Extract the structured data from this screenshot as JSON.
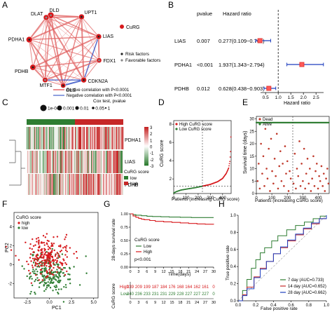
{
  "colors": {
    "red": "#d7191c",
    "darkred": "#c0392b",
    "green": "#2e7d32",
    "blue": "#1f3fbf",
    "gray": "#666666",
    "heat_high": "#c62828",
    "heat_low": "#2e7d32",
    "heat_mid": "#ffffff"
  },
  "panel_labels": [
    "A",
    "B",
    "C",
    "D",
    "E",
    "F",
    "G",
    "H"
  ],
  "network": {
    "genes": [
      "DLD",
      "UPT1",
      "LIAS",
      "FDX1",
      "CDKN2A",
      "GLS",
      "MTF1",
      "PDHB",
      "PDHA1",
      "DLAT"
    ],
    "legend_node": "CuRG",
    "legend_risk": "Risk factors",
    "legend_favorable": "Favorable factors",
    "legend_pos": "Postive correlation with P<0.0001",
    "legend_neg": "Negative correlation with P<0.0001",
    "cox_title": "Cox test, pvalue",
    "cox_labels": [
      "1e-04",
      "0.001",
      "0.01",
      "0.05",
      "1"
    ]
  },
  "forest": {
    "col_pvalue": "pvalue",
    "col_hr": "Hazard ratio",
    "xlabel": "Hazard ratio",
    "ticks": [
      "0.5",
      "1.0",
      "1.5",
      "2.0",
      "2.5"
    ],
    "xlim": [
      0.3,
      2.8
    ],
    "rows": [
      {
        "gene": "LIAS",
        "pvalue": "0.007",
        "hr_text": "0.277(0.109−0.701)",
        "hr": 0.277,
        "lo": 0.109,
        "hi": 0.701
      },
      {
        "gene": "PDHA1",
        "pvalue": "<0.001",
        "hr_text": "1.937(1.343−2.794)",
        "hr": 1.937,
        "lo": 1.343,
        "hi": 2.794
      },
      {
        "gene": "PDHB",
        "pvalue": "0.012",
        "hr_text": "0.628(0.438−0.903)",
        "hr": 0.628,
        "lo": 0.438,
        "hi": 0.903
      }
    ]
  },
  "heatmap": {
    "rows": [
      "PDHA1",
      "LIAS",
      "PDHB"
    ],
    "scale_ticks": [
      "3",
      "2",
      "1",
      "0",
      "-1",
      "-2",
      "-3"
    ],
    "legend_title": "CuRG score",
    "legend_low": "low",
    "legend_high": "high"
  },
  "chart_data": [
    {
      "type": "scatter",
      "panel": "D",
      "ylabel": "CuRG score",
      "xlabel": "Patients (increasing CuRG score)",
      "legend": [
        "High CuRG score",
        "Low CuRG score"
      ],
      "x_ticks": [
        "0",
        "100",
        "200",
        "300",
        "400"
      ],
      "y_ticks": [
        "2",
        "4",
        "6",
        "8"
      ],
      "xlim": [
        0,
        470
      ],
      "ylim": [
        0.4,
        8.4
      ],
      "cutoff_x": 235,
      "cutoff_y": 1.2,
      "n": 470,
      "curve_points": [
        [
          0,
          0.45
        ],
        [
          20,
          0.6
        ],
        [
          60,
          0.78
        ],
        [
          120,
          0.92
        ],
        [
          180,
          1.05
        ],
        [
          235,
          1.2
        ],
        [
          300,
          1.4
        ],
        [
          360,
          1.7
        ],
        [
          400,
          2.05
        ],
        [
          430,
          2.6
        ],
        [
          450,
          3.2
        ],
        [
          460,
          4.0
        ],
        [
          466,
          5.2
        ],
        [
          470,
          8.0
        ]
      ]
    },
    {
      "type": "scatter",
      "panel": "E",
      "ylabel": "Survival time (days)",
      "xlabel": "Patients (increasing CuRG score)",
      "legend": [
        "Dead",
        "Alive"
      ],
      "x_ticks": [
        "0",
        "100",
        "200",
        "300",
        "400"
      ],
      "y_ticks": [
        "0",
        "5",
        "10",
        "15",
        "20",
        "25",
        "30"
      ],
      "xlim": [
        0,
        470
      ],
      "ylim": [
        0,
        31
      ],
      "cutoff_x": 235,
      "dead_points": [
        [
          8,
          5
        ],
        [
          15,
          12
        ],
        [
          22,
          2
        ],
        [
          30,
          20
        ],
        [
          38,
          8
        ],
        [
          45,
          15
        ],
        [
          52,
          3
        ],
        [
          58,
          26
        ],
        [
          66,
          10
        ],
        [
          72,
          6
        ],
        [
          80,
          18
        ],
        [
          88,
          1
        ],
        [
          95,
          22
        ],
        [
          102,
          9
        ],
        [
          110,
          4
        ],
        [
          118,
          14
        ],
        [
          125,
          7
        ],
        [
          132,
          24
        ],
        [
          140,
          2
        ],
        [
          148,
          11
        ],
        [
          155,
          17
        ],
        [
          162,
          5
        ],
        [
          170,
          12
        ],
        [
          178,
          3
        ],
        [
          185,
          19
        ],
        [
          192,
          8
        ],
        [
          200,
          13
        ],
        [
          208,
          1
        ],
        [
          215,
          9
        ],
        [
          222,
          6
        ],
        [
          240,
          4
        ],
        [
          248,
          16
        ],
        [
          255,
          2
        ],
        [
          262,
          10
        ],
        [
          270,
          7
        ],
        [
          278,
          21
        ],
        [
          285,
          3
        ],
        [
          292,
          12
        ],
        [
          300,
          5
        ],
        [
          308,
          18
        ],
        [
          315,
          2
        ],
        [
          322,
          8
        ],
        [
          330,
          14
        ],
        [
          338,
          4
        ],
        [
          345,
          10
        ],
        [
          352,
          1
        ],
        [
          360,
          6
        ],
        [
          368,
          15
        ],
        [
          375,
          3
        ],
        [
          382,
          9
        ],
        [
          390,
          12
        ],
        [
          398,
          2
        ],
        [
          405,
          7
        ],
        [
          412,
          5
        ],
        [
          420,
          11
        ],
        [
          428,
          3
        ],
        [
          435,
          8
        ],
        [
          442,
          1
        ],
        [
          450,
          6
        ],
        [
          458,
          10
        ],
        [
          465,
          4
        ]
      ]
    },
    {
      "type": "scatter",
      "panel": "F",
      "xlabel": "PC1",
      "ylabel": "PC2",
      "legend_title": "CuRG score",
      "legend": [
        "high",
        "low"
      ],
      "x_ticks": [
        "-2.5",
        "0.0",
        "2.5",
        "5.0"
      ],
      "y_ticks": [
        "-2",
        "0",
        "2",
        "4"
      ],
      "xlim": [
        -4,
        5.5
      ],
      "ylim": [
        -3.5,
        5.5
      ]
    },
    {
      "type": "line",
      "panel": "G",
      "ylabel": "28-days survival rate",
      "xlabel": "Time(days)",
      "legend_title": "CuRG score",
      "legend": [
        "Low",
        "High"
      ],
      "pvalue_text": "p<0.001",
      "x_ticks": [
        "0",
        "3",
        "6",
        "9",
        "12",
        "15",
        "18",
        "21",
        "24",
        "27",
        "30"
      ],
      "x_values": [
        0,
        3,
        6,
        9,
        12,
        15,
        18,
        21,
        24,
        27,
        30
      ],
      "y_ticks": [
        "0.00",
        "0.25",
        "0.50",
        "0.75",
        "1.00"
      ],
      "ylim": [
        0,
        1
      ],
      "xlim": [
        0,
        30
      ],
      "series": [
        {
          "name": "Low",
          "points": [
            [
              0,
              1.0
            ],
            [
              1,
              0.985
            ],
            [
              2,
              0.975
            ],
            [
              4,
              0.965
            ],
            [
              6,
              0.955
            ],
            [
              8,
              0.95
            ],
            [
              11,
              0.945
            ],
            [
              14,
              0.94
            ],
            [
              18,
              0.935
            ],
            [
              22,
              0.93
            ],
            [
              26,
              0.93
            ],
            [
              30,
              0.93
            ]
          ]
        },
        {
          "name": "High",
          "points": [
            [
              0,
              1.0
            ],
            [
              1,
              0.96
            ],
            [
              2,
              0.935
            ],
            [
              3,
              0.915
            ],
            [
              4,
              0.9
            ],
            [
              5,
              0.89
            ],
            [
              7,
              0.875
            ],
            [
              9,
              0.86
            ],
            [
              12,
              0.85
            ],
            [
              15,
              0.84
            ],
            [
              18,
              0.83
            ],
            [
              21,
              0.82
            ],
            [
              24,
              0.81
            ],
            [
              27,
              0.805
            ],
            [
              30,
              0.8
            ]
          ]
        }
      ],
      "risk_table_title": "CuRG score",
      "risk_high_label": "High",
      "risk_low_label": "Low",
      "risk_high": [
        "239",
        "209",
        "199",
        "187",
        "184",
        "176",
        "168",
        "164",
        "162",
        "161",
        "0"
      ],
      "risk_low": [
        "240",
        "236",
        "233",
        "231",
        "231",
        "229",
        "228",
        "227",
        "227",
        "227",
        "0"
      ]
    },
    {
      "type": "line",
      "panel": "H",
      "xlabel": "False positive rate",
      "ylabel": "True positive rate",
      "x_ticks": [
        "0.0",
        "0.2",
        "0.4",
        "0.6",
        "0.8",
        "1.0"
      ],
      "y_ticks": [
        "0.0",
        "0.2",
        "0.4",
        "0.6",
        "0.8",
        "1.0"
      ],
      "xlim": [
        0,
        1
      ],
      "ylim": [
        0,
        1
      ],
      "series": [
        {
          "name": "7 day (AUC=0.733)",
          "points": [
            [
              0,
              0
            ],
            [
              0.05,
              0.12
            ],
            [
              0.1,
              0.25
            ],
            [
              0.15,
              0.38
            ],
            [
              0.2,
              0.48
            ],
            [
              0.25,
              0.56
            ],
            [
              0.3,
              0.62
            ],
            [
              0.38,
              0.7
            ],
            [
              0.45,
              0.76
            ],
            [
              0.55,
              0.83
            ],
            [
              0.65,
              0.88
            ],
            [
              0.75,
              0.92
            ],
            [
              0.85,
              0.96
            ],
            [
              0.93,
              0.99
            ],
            [
              1,
              1
            ]
          ]
        },
        {
          "name": "14 day (AUC=0.652)",
          "points": [
            [
              0,
              0
            ],
            [
              0.05,
              0.07
            ],
            [
              0.1,
              0.16
            ],
            [
              0.18,
              0.28
            ],
            [
              0.25,
              0.38
            ],
            [
              0.32,
              0.46
            ],
            [
              0.4,
              0.55
            ],
            [
              0.48,
              0.62
            ],
            [
              0.56,
              0.7
            ],
            [
              0.65,
              0.77
            ],
            [
              0.74,
              0.84
            ],
            [
              0.83,
              0.9
            ],
            [
              0.92,
              0.96
            ],
            [
              1,
              1
            ]
          ]
        },
        {
          "name": "28 day (AUC=0.662)",
          "points": [
            [
              0,
              0
            ],
            [
              0.05,
              0.06
            ],
            [
              0.1,
              0.14
            ],
            [
              0.18,
              0.27
            ],
            [
              0.25,
              0.37
            ],
            [
              0.32,
              0.46
            ],
            [
              0.4,
              0.55
            ],
            [
              0.48,
              0.63
            ],
            [
              0.56,
              0.71
            ],
            [
              0.65,
              0.78
            ],
            [
              0.74,
              0.85
            ],
            [
              0.83,
              0.91
            ],
            [
              0.92,
              0.96
            ],
            [
              1,
              1
            ]
          ]
        }
      ]
    }
  ]
}
